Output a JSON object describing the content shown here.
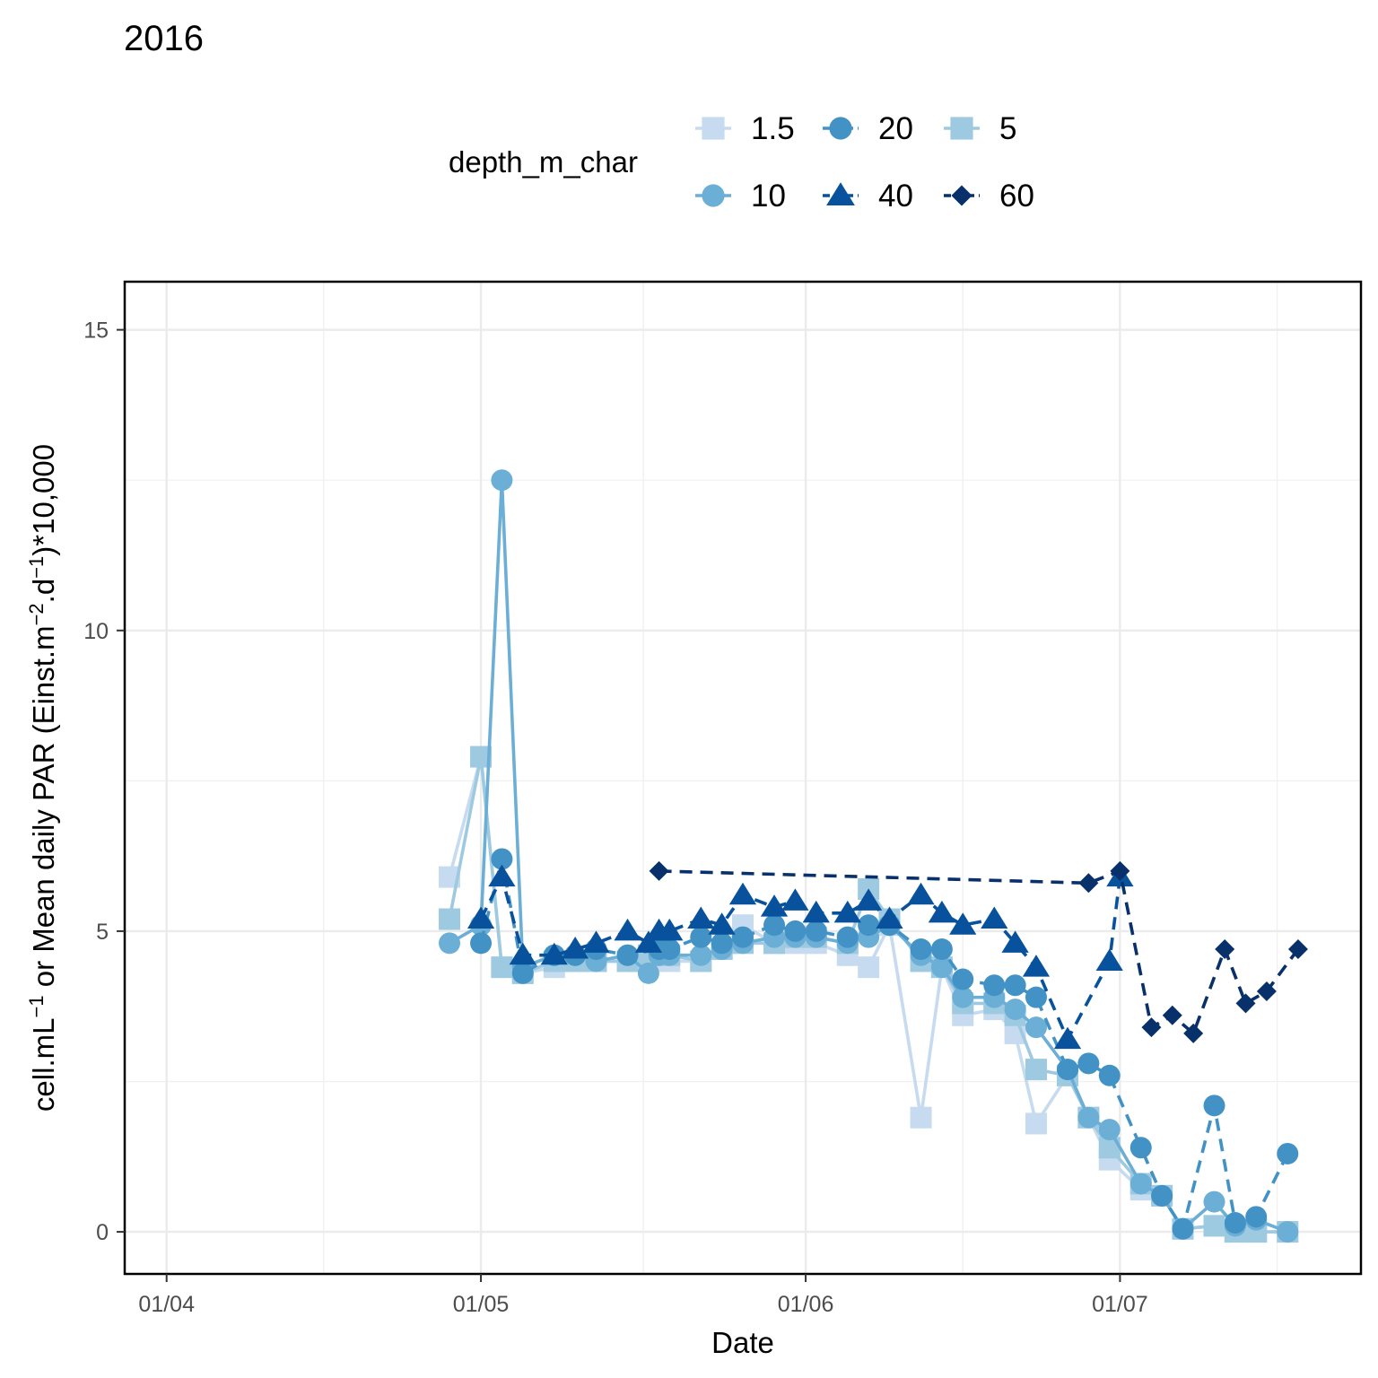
{
  "chart_data": {
    "type": "line",
    "title": "2016",
    "xlabel": "Date",
    "ylabel_parts": [
      "cell.mL",
      "−1",
      " or Mean daily PAR (Einst.m",
      "−2",
      ".d",
      "−1",
      ")*10,000"
    ],
    "x_ticks": [
      {
        "date": "2016-04-01",
        "label": "01/04"
      },
      {
        "date": "2016-05-01",
        "label": "01/05"
      },
      {
        "date": "2016-06-01",
        "label": "01/06"
      },
      {
        "date": "2016-07-01",
        "label": "01/07"
      }
    ],
    "y_ticks": [
      0,
      5,
      10,
      15
    ],
    "xlim": [
      "2016-03-28",
      "2016-07-24"
    ],
    "ylim": [
      -0.7,
      15.8
    ],
    "grid": true,
    "legend": {
      "title": "depth_m_char",
      "position": "top",
      "order": [
        "1.5",
        "20",
        "5",
        "10",
        "40",
        "60"
      ]
    },
    "series": [
      {
        "name": "1.5",
        "color": "#c6dbef",
        "shape": "square",
        "dashed": false,
        "points": [
          [
            "2016-04-28",
            5.9
          ],
          [
            "2016-05-01",
            7.9
          ],
          [
            "2016-05-03",
            4.4
          ],
          [
            "2016-05-05",
            4.3
          ],
          [
            "2016-05-08",
            4.4
          ],
          [
            "2016-05-10",
            4.5
          ],
          [
            "2016-05-12",
            4.5
          ],
          [
            "2016-05-15",
            4.5
          ],
          [
            "2016-05-17",
            4.5
          ],
          [
            "2016-05-18",
            4.5
          ],
          [
            "2016-05-19",
            4.5
          ],
          [
            "2016-05-22",
            4.5
          ],
          [
            "2016-05-24",
            4.7
          ],
          [
            "2016-05-26",
            5.1
          ],
          [
            "2016-05-29",
            4.8
          ],
          [
            "2016-05-31",
            4.8
          ],
          [
            "2016-06-02",
            4.8
          ],
          [
            "2016-06-05",
            4.6
          ],
          [
            "2016-06-07",
            4.4
          ],
          [
            "2016-06-09",
            5.1
          ],
          [
            "2016-06-12",
            1.9
          ],
          [
            "2016-06-14",
            4.4
          ],
          [
            "2016-06-16",
            3.6
          ],
          [
            "2016-06-19",
            3.7
          ],
          [
            "2016-06-21",
            3.3
          ],
          [
            "2016-06-23",
            1.8
          ],
          [
            "2016-06-26",
            2.6
          ],
          [
            "2016-06-28",
            1.9
          ],
          [
            "2016-06-30",
            1.2
          ],
          [
            "2016-07-03",
            0.7
          ],
          [
            "2016-07-05",
            0.6
          ],
          [
            "2016-07-07",
            0.05
          ],
          [
            "2016-07-10",
            0.1
          ],
          [
            "2016-07-12",
            0.0
          ],
          [
            "2016-07-14",
            0.0
          ],
          [
            "2016-07-17",
            0.0
          ]
        ]
      },
      {
        "name": "5",
        "color": "#9ecae1",
        "shape": "square",
        "dashed": false,
        "points": [
          [
            "2016-04-28",
            5.2
          ],
          [
            "2016-05-01",
            7.9
          ],
          [
            "2016-05-03",
            4.4
          ],
          [
            "2016-05-05",
            4.3
          ],
          [
            "2016-05-08",
            4.5
          ],
          [
            "2016-05-10",
            4.5
          ],
          [
            "2016-05-12",
            4.5
          ],
          [
            "2016-05-15",
            4.5
          ],
          [
            "2016-05-17",
            4.6
          ],
          [
            "2016-05-18",
            4.6
          ],
          [
            "2016-05-19",
            4.6
          ],
          [
            "2016-05-22",
            4.5
          ],
          [
            "2016-05-24",
            4.7
          ],
          [
            "2016-05-26",
            4.8
          ],
          [
            "2016-05-29",
            4.8
          ],
          [
            "2016-05-31",
            4.9
          ],
          [
            "2016-06-02",
            4.9
          ],
          [
            "2016-06-05",
            4.8
          ],
          [
            "2016-06-07",
            5.7
          ],
          [
            "2016-06-09",
            5.2
          ],
          [
            "2016-06-12",
            4.5
          ],
          [
            "2016-06-14",
            4.4
          ],
          [
            "2016-06-16",
            3.8
          ],
          [
            "2016-06-19",
            3.8
          ],
          [
            "2016-06-21",
            3.6
          ],
          [
            "2016-06-23",
            2.7
          ],
          [
            "2016-06-26",
            2.6
          ],
          [
            "2016-06-28",
            1.9
          ],
          [
            "2016-06-30",
            1.4
          ],
          [
            "2016-07-03",
            0.8
          ],
          [
            "2016-07-05",
            0.6
          ],
          [
            "2016-07-07",
            0.05
          ],
          [
            "2016-07-10",
            0.1
          ],
          [
            "2016-07-12",
            0.0
          ],
          [
            "2016-07-14",
            0.0
          ],
          [
            "2016-07-17",
            0.0
          ]
        ]
      },
      {
        "name": "10",
        "color": "#6baed6",
        "shape": "circle",
        "dashed": false,
        "points": [
          [
            "2016-04-28",
            4.8
          ],
          [
            "2016-05-01",
            5.1
          ],
          [
            "2016-05-03",
            12.5
          ],
          [
            "2016-05-05",
            4.4
          ],
          [
            "2016-05-08",
            4.6
          ],
          [
            "2016-05-10",
            4.6
          ],
          [
            "2016-05-12",
            4.5
          ],
          [
            "2016-05-15",
            4.6
          ],
          [
            "2016-05-17",
            4.3
          ],
          [
            "2016-05-18",
            4.6
          ],
          [
            "2016-05-19",
            4.6
          ],
          [
            "2016-05-22",
            4.6
          ],
          [
            "2016-05-24",
            4.7
          ],
          [
            "2016-05-26",
            4.8
          ],
          [
            "2016-05-29",
            4.9
          ],
          [
            "2016-05-31",
            4.9
          ],
          [
            "2016-06-02",
            4.9
          ],
          [
            "2016-06-05",
            4.8
          ],
          [
            "2016-06-07",
            4.9
          ],
          [
            "2016-06-09",
            5.1
          ],
          [
            "2016-06-12",
            4.6
          ],
          [
            "2016-06-14",
            4.4
          ],
          [
            "2016-06-16",
            3.9
          ],
          [
            "2016-06-19",
            3.9
          ],
          [
            "2016-06-21",
            3.7
          ],
          [
            "2016-06-23",
            3.4
          ],
          [
            "2016-06-26",
            2.7
          ],
          [
            "2016-06-28",
            1.9
          ],
          [
            "2016-06-30",
            1.7
          ],
          [
            "2016-07-03",
            0.8
          ],
          [
            "2016-07-05",
            0.6
          ],
          [
            "2016-07-07",
            0.05
          ],
          [
            "2016-07-10",
            0.5
          ],
          [
            "2016-07-12",
            0.1
          ],
          [
            "2016-07-14",
            0.2
          ],
          [
            "2016-07-17",
            0.0
          ]
        ]
      },
      {
        "name": "20",
        "color": "#4292c6",
        "shape": "circle",
        "dashed": true,
        "points": [
          [
            "2016-05-01",
            4.8
          ],
          [
            "2016-05-03",
            6.2
          ],
          [
            "2016-05-05",
            4.3
          ],
          [
            "2016-05-08",
            4.6
          ],
          [
            "2016-05-10",
            4.6
          ],
          [
            "2016-05-12",
            4.7
          ],
          [
            "2016-05-15",
            4.6
          ],
          [
            "2016-05-18",
            4.7
          ],
          [
            "2016-05-19",
            4.7
          ],
          [
            "2016-05-22",
            4.9
          ],
          [
            "2016-05-24",
            4.8
          ],
          [
            "2016-05-26",
            4.9
          ],
          [
            "2016-05-29",
            5.1
          ],
          [
            "2016-05-31",
            5.0
          ],
          [
            "2016-06-02",
            5.0
          ],
          [
            "2016-06-05",
            4.9
          ],
          [
            "2016-06-07",
            5.1
          ],
          [
            "2016-06-09",
            5.1
          ],
          [
            "2016-06-12",
            4.7
          ],
          [
            "2016-06-14",
            4.7
          ],
          [
            "2016-06-16",
            4.2
          ],
          [
            "2016-06-19",
            4.1
          ],
          [
            "2016-06-21",
            4.1
          ],
          [
            "2016-06-23",
            3.9
          ],
          [
            "2016-06-26",
            2.7
          ],
          [
            "2016-06-28",
            2.8
          ],
          [
            "2016-06-30",
            2.6
          ],
          [
            "2016-07-03",
            1.4
          ],
          [
            "2016-07-05",
            0.6
          ],
          [
            "2016-07-07",
            0.05
          ],
          [
            "2016-07-10",
            2.1
          ],
          [
            "2016-07-12",
            0.15
          ],
          [
            "2016-07-14",
            0.25
          ],
          [
            "2016-07-17",
            1.3
          ]
        ]
      },
      {
        "name": "40",
        "color": "#08519c",
        "shape": "triangle",
        "dashed": true,
        "points": [
          [
            "2016-05-01",
            5.2
          ],
          [
            "2016-05-03",
            5.9
          ],
          [
            "2016-05-05",
            4.6
          ],
          [
            "2016-05-08",
            4.6
          ],
          [
            "2016-05-10",
            4.7
          ],
          [
            "2016-05-12",
            4.8
          ],
          [
            "2016-05-15",
            5.0
          ],
          [
            "2016-05-17",
            4.8
          ],
          [
            "2016-05-18",
            5.0
          ],
          [
            "2016-05-19",
            5.0
          ],
          [
            "2016-05-22",
            5.2
          ],
          [
            "2016-05-24",
            5.1
          ],
          [
            "2016-05-26",
            5.6
          ],
          [
            "2016-05-29",
            5.4
          ],
          [
            "2016-05-31",
            5.5
          ],
          [
            "2016-06-02",
            5.3
          ],
          [
            "2016-06-05",
            5.3
          ],
          [
            "2016-06-07",
            5.5
          ],
          [
            "2016-06-09",
            5.2
          ],
          [
            "2016-06-12",
            5.6
          ],
          [
            "2016-06-14",
            5.3
          ],
          [
            "2016-06-16",
            5.1
          ],
          [
            "2016-06-19",
            5.2
          ],
          [
            "2016-06-21",
            4.8
          ],
          [
            "2016-06-23",
            4.4
          ],
          [
            "2016-06-26",
            3.2
          ],
          [
            "2016-06-30",
            4.5
          ],
          [
            "2016-07-01",
            5.9
          ]
        ]
      },
      {
        "name": "60",
        "color": "#08306b",
        "shape": "diamond",
        "dashed": true,
        "points": [
          [
            "2016-05-18",
            6.0
          ],
          [
            "2016-06-28",
            5.8
          ],
          [
            "2016-07-01",
            6.0
          ],
          [
            "2016-07-04",
            3.4
          ],
          [
            "2016-07-06",
            3.6
          ],
          [
            "2016-07-08",
            3.3
          ],
          [
            "2016-07-11",
            4.7
          ],
          [
            "2016-07-13",
            3.8
          ],
          [
            "2016-07-15",
            4.0
          ],
          [
            "2016-07-18",
            4.7
          ]
        ]
      }
    ]
  }
}
